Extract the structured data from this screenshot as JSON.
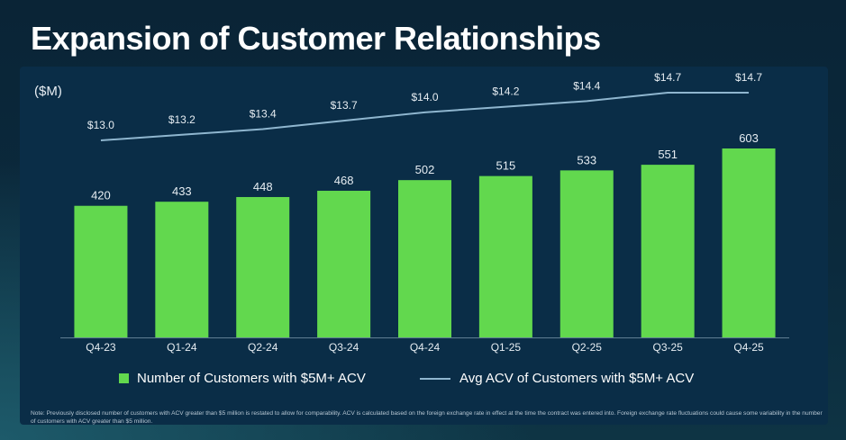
{
  "header": {
    "title": "Expansion of Customer Relationships",
    "unit_label": "($M)"
  },
  "legend": {
    "bar_label": "Number of Customers with $5M+ ACV",
    "line_label": "Avg ACV of Customers with $5M+ ACV"
  },
  "note": "Note: Previously disclosed number of customers with ACV greater than $5 million is restated to allow for comparability. ACV is calculated based on the foreign exchange rate in effect at the time the contract was entered into. Foreign exchange rate fluctuations could cause some variability in the number of customers with ACV greater than $5 million.",
  "colors": {
    "bar": "#62d84e",
    "line": "#8fb6cf",
    "axis": "#5f7e93",
    "label": "#e6edf2"
  },
  "chart_data": {
    "type": "bar",
    "categories": [
      "Q4-23",
      "Q1-24",
      "Q2-24",
      "Q3-24",
      "Q4-24",
      "Q1-25",
      "Q2-25",
      "Q3-25",
      "Q4-25"
    ],
    "series": [
      {
        "name": "Number of Customers with $5M+ ACV",
        "type": "bar",
        "values": [
          420,
          433,
          448,
          468,
          502,
          515,
          533,
          551,
          603
        ],
        "labels": [
          "420",
          "433",
          "448",
          "468",
          "502",
          "515",
          "533",
          "551",
          "603"
        ]
      },
      {
        "name": "Avg ACV of Customers with $5M+ ACV",
        "type": "line",
        "values": [
          13.0,
          13.2,
          13.4,
          13.7,
          14.0,
          14.2,
          14.4,
          14.7,
          14.7
        ],
        "labels": [
          "$13.0",
          "$13.2",
          "$13.4",
          "$13.7",
          "$14.0",
          "$14.2",
          "$14.4",
          "$14.7",
          "$14.7"
        ]
      }
    ],
    "ylabel": "($M)",
    "ylim_bars": [
      0,
      603
    ],
    "ylim_line": [
      13.0,
      14.7
    ],
    "grid": false,
    "legend_position": "bottom"
  }
}
